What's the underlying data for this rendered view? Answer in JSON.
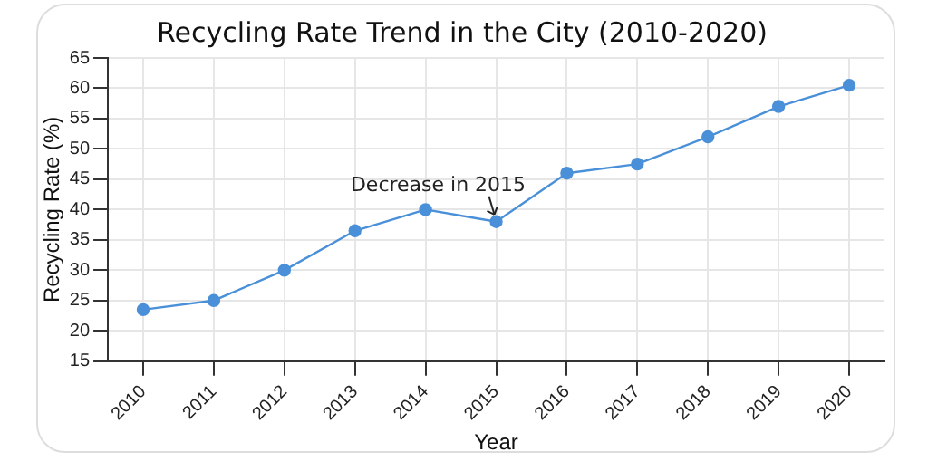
{
  "chart_data": {
    "type": "line",
    "title": "Recycling Rate Trend in the City (2010-2020)",
    "xlabel": "Year",
    "ylabel": "Recycling Rate (%)",
    "categories": [
      "2010",
      "2011",
      "2012",
      "2013",
      "2014",
      "2015",
      "2016",
      "2017",
      "2018",
      "2019",
      "2020"
    ],
    "series": [
      {
        "color": "#4a90d9",
        "values": [
          23.5,
          25,
          30,
          36.5,
          40,
          38,
          46,
          47.5,
          52,
          57,
          60.5
        ]
      }
    ],
    "ylim": [
      15,
      65
    ],
    "yticks": [
      15,
      20,
      25,
      30,
      35,
      40,
      45,
      50,
      55,
      60,
      65
    ],
    "grid": true,
    "marker": "circle",
    "line_style": "solid",
    "legend": false,
    "annotations": [
      {
        "text": "Decrease in 2015",
        "x": "2015",
        "y": 38
      }
    ]
  }
}
